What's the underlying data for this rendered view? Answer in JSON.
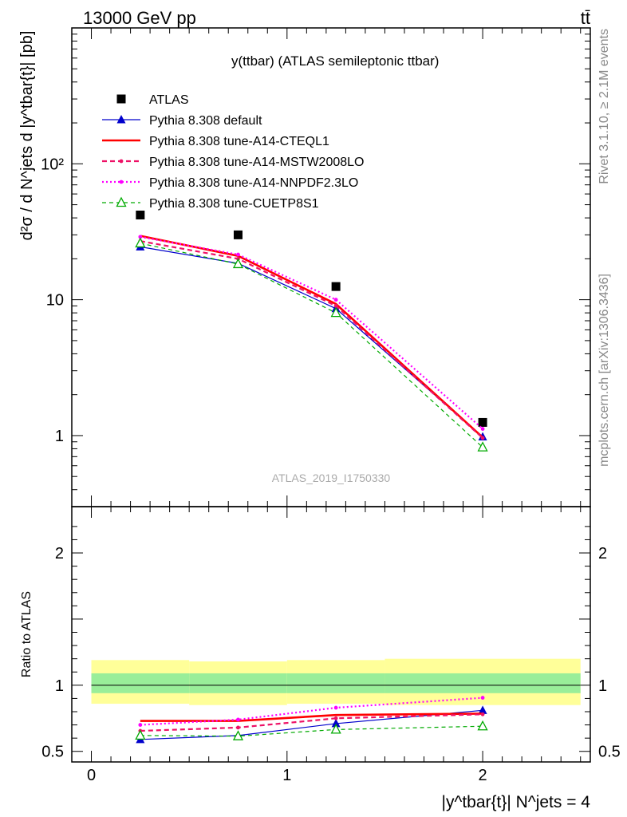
{
  "header": {
    "process": "13000 GeV pp",
    "final_state": "tt̄",
    "analysis_id": "ATLAS_2019_I1750330",
    "side_label_top": "Rivet 3.1.10, ≥ 2.1M events",
    "side_label_bottom": "mcplots.cern.ch [arXiv:1306.3436]"
  },
  "chart_data": [
    {
      "panel": "main",
      "type": "line",
      "title": "y(ttbar) (ATLAS semileptonic ttbar)",
      "ylabel": "d²σ / d N^jets d |y^tbar{t}| [pb]",
      "xlabel": "|y^tbar{t}| N^jets = 4",
      "yscale": "log",
      "ylim": [
        0.3,
        1000
      ],
      "xlim": [
        -0.1,
        2.55
      ],
      "x_ticks": [
        "0",
        "1",
        "2"
      ],
      "y_ticks": [
        "1",
        "10",
        "10²"
      ],
      "legend_position": "top-left",
      "x": [
        0.25,
        0.75,
        1.25,
        2.0
      ],
      "series": [
        {
          "name": "ATLAS",
          "color": "#000000",
          "style": "data",
          "marker": "square",
          "values": [
            42,
            30,
            12.5,
            1.25
          ]
        },
        {
          "name": "Pythia 8.308 default",
          "color": "#0000cc",
          "style": "solid-thin",
          "marker": "triangle",
          "values": [
            24.5,
            18.5,
            8.6,
            0.98
          ]
        },
        {
          "name": "Pythia 8.308 tune-A14-CTEQL1",
          "color": "#ff0000",
          "style": "solid-thick",
          "marker": "none",
          "values": [
            29.5,
            21.0,
            9.3,
            0.97
          ]
        },
        {
          "name": "Pythia 8.308 tune-A14-MSTW2008LO",
          "color": "#ee1166",
          "style": "dashed",
          "marker": "dot",
          "values": [
            27.0,
            20.0,
            9.0,
            0.96
          ]
        },
        {
          "name": "Pythia 8.308 tune-A14-NNPDF2.3LO",
          "color": "#ff00ff",
          "style": "dotted",
          "marker": "dot",
          "values": [
            29.0,
            21.5,
            10.0,
            1.12
          ]
        },
        {
          "name": "Pythia 8.308 tune-CUETP8S1",
          "color": "#00aa00",
          "style": "dashed-thin",
          "marker": "open-triangle",
          "values": [
            26.0,
            18.3,
            8.0,
            0.82
          ]
        }
      ]
    },
    {
      "panel": "ratio",
      "type": "line",
      "ylabel": "Ratio to ATLAS",
      "ylim": [
        0.42,
        2.35
      ],
      "y_ticks": [
        "0.5",
        "1",
        "2"
      ],
      "reference_line": 1,
      "bands": {
        "inner_color": "#99ee99",
        "outer_color": "#ffff99",
        "x_edges": [
          0.0,
          0.5,
          1.0,
          1.5,
          2.5
        ],
        "outer_lower": [
          0.86,
          0.85,
          0.86,
          0.85
        ],
        "outer_upper": [
          1.19,
          1.18,
          1.19,
          1.2
        ],
        "inner_lower": [
          0.94,
          0.94,
          0.94,
          0.94
        ],
        "inner_upper": [
          1.09,
          1.09,
          1.09,
          1.09
        ]
      },
      "x": [
        0.25,
        0.75,
        1.25,
        2.0
      ],
      "series": [
        {
          "name": "Pythia 8.308 default",
          "values": [
            0.59,
            0.62,
            0.71,
            0.81
          ]
        },
        {
          "name": "Pythia 8.308 tune-A14-CTEQL1",
          "values": [
            0.73,
            0.73,
            0.775,
            0.785
          ]
        },
        {
          "name": "Pythia 8.308 tune-A14-MSTW2008LO",
          "values": [
            0.655,
            0.68,
            0.75,
            0.78
          ]
        },
        {
          "name": "Pythia 8.308 tune-A14-NNPDF2.3LO",
          "values": [
            0.7,
            0.74,
            0.83,
            0.905
          ]
        },
        {
          "name": "Pythia 8.308 tune-CUETP8S1",
          "values": [
            0.62,
            0.615,
            0.665,
            0.69
          ]
        }
      ]
    }
  ]
}
